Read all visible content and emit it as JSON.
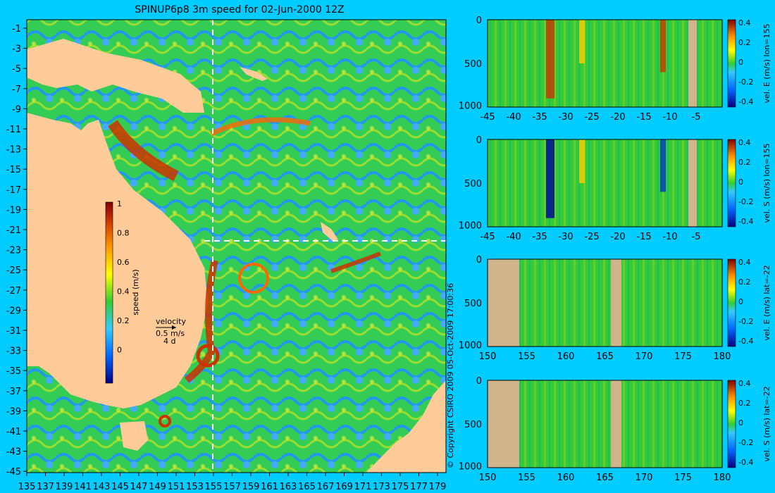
{
  "map": {
    "title": "SPINUP6p8 3m speed for 02-Jun-2000 12Z",
    "lat_labels": [
      "-1",
      "-3",
      "-5",
      "-7",
      "-9",
      "-11",
      "-13",
      "-15",
      "-17",
      "-19",
      "-21",
      "-23",
      "-25",
      "-27",
      "-29",
      "-31",
      "-33",
      "-35",
      "-37",
      "-39",
      "-41",
      "-43",
      "-45"
    ],
    "lon_labels": [
      "135",
      "137",
      "139",
      "141",
      "143",
      "145",
      "147",
      "149",
      "151",
      "153",
      "155",
      "157",
      "159",
      "161",
      "163",
      "165",
      "167",
      "169",
      "171",
      "173",
      "175",
      "177",
      "179"
    ],
    "section_lon": "155",
    "section_lat": "-22",
    "colorbar": {
      "label": "speed (m/s)",
      "ticks": [
        "1",
        "0.8",
        "0.6",
        "0.4",
        "0.2",
        "0"
      ]
    },
    "velocity_key": {
      "title": "velocity",
      "speed": "0.5 m/s",
      "time": "4 d"
    },
    "copyright": "© Copyright CSIRO 2009   05-Oct-2009 17:00:36",
    "colors": {
      "land": "#ffcc99",
      "ocean_mid": "#33cc33",
      "ocean_low": "#3399ff",
      "jet": "#cc3300",
      "background": "#00ccff"
    }
  },
  "sections": [
    {
      "label": "vel. E (m/s) lon=155",
      "x_ticks": [
        "-45",
        "-40",
        "-35",
        "-30",
        "-25",
        "-20",
        "-15",
        "-10",
        "-5"
      ],
      "y_ticks": [
        "0",
        "500",
        "1000"
      ],
      "cb_ticks": [
        "0.4",
        "0.2",
        "0",
        "-0.2",
        "-0.4"
      ]
    },
    {
      "label": "vel. S (m/s) lon=155",
      "x_ticks": [
        "-45",
        "-40",
        "-35",
        "-30",
        "-25",
        "-20",
        "-15",
        "-10",
        "-5"
      ],
      "y_ticks": [
        "0",
        "500",
        "1000"
      ],
      "cb_ticks": [
        "0.4",
        "0.2",
        "0",
        "-0.2",
        "-0.4"
      ]
    },
    {
      "label": "vel. E (m/s) lat=-22",
      "x_ticks": [
        "150",
        "155",
        "160",
        "165",
        "170",
        "175",
        "180"
      ],
      "y_ticks": [
        "0",
        "500",
        "1000"
      ],
      "cb_ticks": [
        "0.4",
        "0.2",
        "0",
        "-0.2",
        "-0.4"
      ]
    },
    {
      "label": "vel. S (m/s) lat=-22",
      "x_ticks": [
        "150",
        "155",
        "160",
        "165",
        "170",
        "175",
        "180"
      ],
      "y_ticks": [
        "0",
        "500",
        "1000"
      ],
      "cb_ticks": [
        "0.4",
        "0.2",
        "0",
        "-0.2",
        "-0.4"
      ]
    }
  ]
}
